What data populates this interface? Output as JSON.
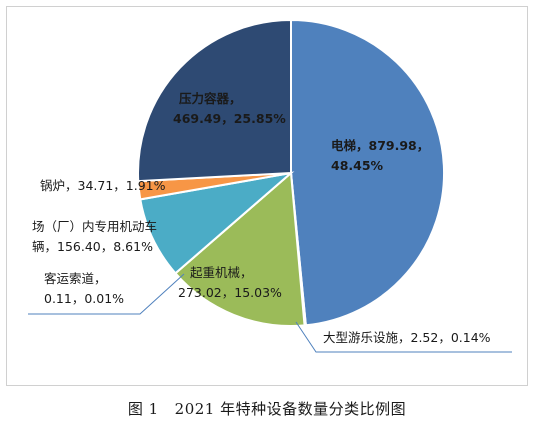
{
  "chart_data": {
    "type": "pie",
    "slices": [
      {
        "name": "电梯",
        "value": 879.98,
        "percent": "48.45%",
        "color": "#4f81bd"
      },
      {
        "name": "大型游乐设施",
        "value": 2.52,
        "percent": "0.14%",
        "color": "#4f81bd"
      },
      {
        "name": "起重机械",
        "value": 273.02,
        "percent": "15.03%",
        "color": "#9bbb59"
      },
      {
        "name": "客运索道",
        "value": 0.11,
        "percent": "0.01%",
        "color": "#4f81bd"
      },
      {
        "name": "场（厂）内专用机动车辆",
        "value": 156.4,
        "percent": "8.61%",
        "color": "#4bacc6"
      },
      {
        "name": "锅炉",
        "value": 34.71,
        "percent": "1.91%",
        "color": "#f79646"
      },
      {
        "name": "压力容器",
        "value": 469.49,
        "percent": "25.85%",
        "color": "#2e4a73"
      }
    ],
    "labels": {
      "elevator_l1": "电梯，879.98，",
      "elevator_l2": "48.45%",
      "amusement": "大型游乐设施，2.52，0.14%",
      "crane_l1": "起重机械，",
      "crane_l2": "273.02，15.03%",
      "ropeway_l1": "客运索道，",
      "ropeway_l2": "0.11，0.01%",
      "vehicle_l1": "场（厂）内专用机动车",
      "vehicle_l2": "辆，156.40，8.61%",
      "boiler": "锅炉，34.71，1.91%",
      "pressure_l1": "压力容器，",
      "pressure_l2": "469.49，25.85%"
    }
  },
  "caption": {
    "fig": "图 1",
    "text": "2021 年特种设备数量分类比例图"
  }
}
